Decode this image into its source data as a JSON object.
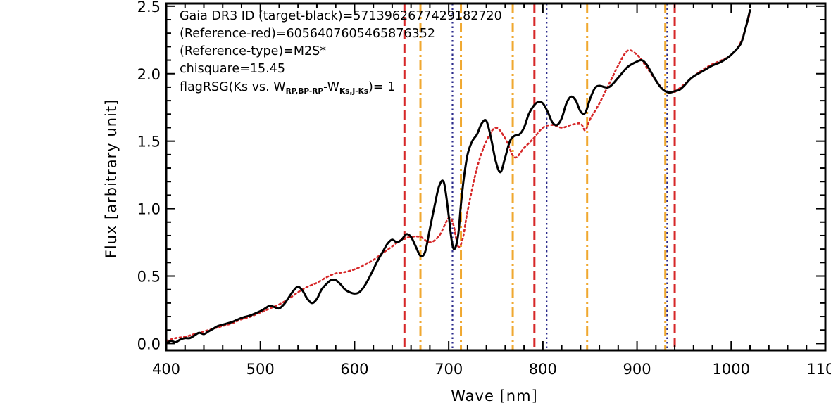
{
  "chart_data": {
    "type": "line",
    "xlabel": "Wave [nm]",
    "ylabel": "Flux [arbitrary unit]",
    "xlim": [
      400,
      1100
    ],
    "ylim": [
      -0.05,
      2.52
    ],
    "x_ticks": [
      "400",
      "500",
      "600",
      "700",
      "800",
      "900",
      "1000",
      "1100"
    ],
    "y_ticks": [
      "0.0",
      "0.5",
      "1.0",
      "1.5",
      "2.0",
      "2.5"
    ],
    "grid": false,
    "annotations": {
      "line1": "Gaia DR3 ID (target-black)=5713962677429182720",
      "line2": "(Reference-red)=6056407605465876352",
      "line3": "(Reference-type)=M2S*",
      "line4": "chisquare=15.45",
      "line5_prefix": "flagRSG(Ks vs. W",
      "line5_sub1": "RP,BP-RP",
      "line5_mid": "-W",
      "line5_sub2": "Ks,J-Ks",
      "line5_suffix": ")= 1"
    },
    "series": [
      {
        "name": "target-black",
        "color": "#000000",
        "style": "solid",
        "x": [
          400,
          405,
          410,
          415,
          420,
          425,
          430,
          435,
          440,
          445,
          450,
          455,
          460,
          470,
          480,
          490,
          500,
          505,
          510,
          515,
          520,
          525,
          530,
          535,
          540,
          545,
          550,
          555,
          560,
          565,
          570,
          575,
          580,
          585,
          590,
          595,
          600,
          605,
          610,
          615,
          620,
          625,
          630,
          635,
          640,
          645,
          650,
          655,
          660,
          665,
          670,
          675,
          680,
          685,
          690,
          695,
          700,
          703,
          706,
          710,
          713,
          716,
          720,
          725,
          730,
          735,
          740,
          745,
          750,
          755,
          760,
          765,
          770,
          775,
          780,
          785,
          790,
          795,
          800,
          805,
          810,
          815,
          820,
          825,
          830,
          835,
          840,
          845,
          850,
          855,
          860,
          870,
          880,
          890,
          900,
          905,
          910,
          915,
          920,
          925,
          930,
          935,
          940,
          945,
          950,
          955,
          960,
          970,
          980,
          990,
          1000,
          1010,
          1015,
          1020
        ],
        "y": [
          0.0,
          0.02,
          0.01,
          0.03,
          0.04,
          0.04,
          0.06,
          0.08,
          0.07,
          0.09,
          0.11,
          0.13,
          0.14,
          0.16,
          0.19,
          0.21,
          0.24,
          0.26,
          0.28,
          0.27,
          0.26,
          0.29,
          0.34,
          0.39,
          0.42,
          0.39,
          0.33,
          0.3,
          0.33,
          0.4,
          0.44,
          0.47,
          0.47,
          0.44,
          0.4,
          0.38,
          0.37,
          0.38,
          0.42,
          0.48,
          0.55,
          0.62,
          0.68,
          0.74,
          0.77,
          0.75,
          0.77,
          0.81,
          0.79,
          0.72,
          0.65,
          0.68,
          0.85,
          1.02,
          1.17,
          1.19,
          0.95,
          0.77,
          0.7,
          0.8,
          1.03,
          1.22,
          1.4,
          1.5,
          1.55,
          1.63,
          1.65,
          1.52,
          1.35,
          1.27,
          1.38,
          1.5,
          1.54,
          1.55,
          1.6,
          1.7,
          1.76,
          1.79,
          1.78,
          1.72,
          1.64,
          1.62,
          1.67,
          1.78,
          1.83,
          1.8,
          1.72,
          1.71,
          1.81,
          1.89,
          1.91,
          1.9,
          1.97,
          2.05,
          2.09,
          2.1,
          2.07,
          2.01,
          1.95,
          1.9,
          1.87,
          1.86,
          1.87,
          1.88,
          1.91,
          1.95,
          1.98,
          2.02,
          2.06,
          2.09,
          2.14,
          2.22,
          2.33,
          2.47
        ]
      },
      {
        "name": "reference-red",
        "color": "#d62728",
        "style": "dotted",
        "x": [
          400,
          410,
          420,
          430,
          440,
          450,
          460,
          470,
          480,
          490,
          500,
          510,
          520,
          530,
          540,
          550,
          560,
          570,
          580,
          590,
          600,
          610,
          620,
          630,
          640,
          650,
          660,
          670,
          680,
          690,
          700,
          705,
          710,
          715,
          720,
          730,
          740,
          750,
          760,
          770,
          780,
          790,
          800,
          810,
          820,
          830,
          840,
          845,
          850,
          860,
          870,
          880,
          890,
          900,
          910,
          920,
          930,
          940,
          950,
          960,
          970,
          980,
          990,
          1000,
          1010,
          1020
        ],
        "y": [
          0.02,
          0.04,
          0.05,
          0.07,
          0.09,
          0.11,
          0.13,
          0.15,
          0.18,
          0.2,
          0.23,
          0.26,
          0.29,
          0.33,
          0.38,
          0.42,
          0.45,
          0.49,
          0.52,
          0.53,
          0.55,
          0.58,
          0.62,
          0.67,
          0.72,
          0.77,
          0.79,
          0.79,
          0.75,
          0.8,
          0.93,
          0.88,
          0.72,
          0.78,
          0.98,
          1.3,
          1.5,
          1.6,
          1.52,
          1.38,
          1.45,
          1.52,
          1.6,
          1.62,
          1.6,
          1.62,
          1.63,
          1.58,
          1.66,
          1.78,
          1.92,
          2.06,
          2.17,
          2.14,
          2.05,
          1.95,
          1.87,
          1.87,
          1.92,
          1.98,
          2.03,
          2.07,
          2.1,
          2.14,
          2.23,
          2.45
        ]
      }
    ],
    "vlines": [
      {
        "x": 653,
        "color": "#d62728",
        "style": "dashed"
      },
      {
        "x": 670,
        "color": "#f0a830",
        "style": "dashdot"
      },
      {
        "x": 704,
        "color": "#2c2c8c",
        "style": "dotted"
      },
      {
        "x": 713,
        "color": "#f0a830",
        "style": "dashdot"
      },
      {
        "x": 768,
        "color": "#f0a830",
        "style": "dashdot"
      },
      {
        "x": 791,
        "color": "#d62728",
        "style": "dashed"
      },
      {
        "x": 804,
        "color": "#2c2c8c",
        "style": "dotted"
      },
      {
        "x": 847,
        "color": "#f0a830",
        "style": "dashdot"
      },
      {
        "x": 930,
        "color": "#f0a830",
        "style": "dashdot"
      },
      {
        "x": 932,
        "color": "#2c2c8c",
        "style": "dotted"
      },
      {
        "x": 940,
        "color": "#d62728",
        "style": "dashed"
      }
    ]
  }
}
